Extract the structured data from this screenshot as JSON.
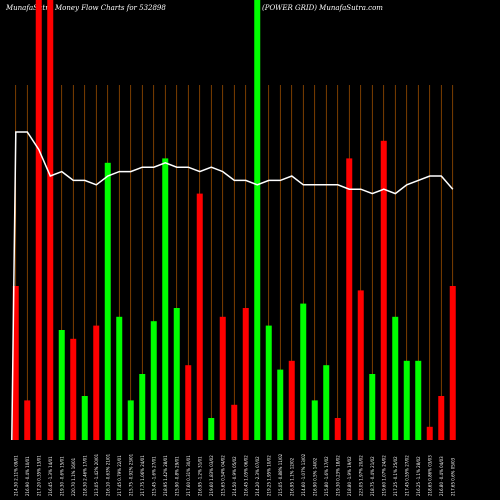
{
  "chart_data": {
    "type": "bar",
    "title": "MunafaSutra  Money Flow  Charts for 532898",
    "subtitle": "(POWER GRID) MunafaSutra.com",
    "ylim": [
      0,
      100
    ],
    "grid": false,
    "colors": {
      "up": "#00ff00",
      "down": "#ff0000",
      "line": "#ffffff",
      "gridline": "#cc6600",
      "background": "#000000"
    },
    "bars": [
      {
        "value": 35,
        "color": "down",
        "label": "214.30 2.11% 09/01"
      },
      {
        "value": 9,
        "color": "down",
        "label": "216.90 -0.4% 10/01"
      },
      {
        "value": 100,
        "color": "down",
        "label": "217.20 0.35% 13/01"
      },
      {
        "value": 100,
        "color": "down",
        "label": "216.45 -1.3% 14/01"
      },
      {
        "value": 25,
        "color": "up",
        "label": "219.30 -0.6% 15/01"
      },
      {
        "value": 23,
        "color": "down",
        "label": "220.70 1.1% 16/01"
      },
      {
        "value": 10,
        "color": "up",
        "label": "218.30 2.46% 17/01"
      },
      {
        "value": 26,
        "color": "down",
        "label": "213.05 -1.42% 20/01"
      },
      {
        "value": 63,
        "color": "up",
        "label": "216.10 -0.63% 21/01"
      },
      {
        "value": 28,
        "color": "up",
        "label": "217.45 0.79% 22/01"
      },
      {
        "value": 9,
        "color": "up",
        "label": "215.75 -0.92% 23/01"
      },
      {
        "value": 15,
        "color": "up",
        "label": "217.75 1.06% 24/01"
      },
      {
        "value": 27,
        "color": "up",
        "label": "215.45 -1.6% 27/01"
      },
      {
        "value": 64,
        "color": "up",
        "label": "218.95 1.42% 28/01"
      },
      {
        "value": 30,
        "color": "up",
        "label": "215.90 -0.8% 29/01"
      },
      {
        "value": 17,
        "color": "down",
        "label": "217.60 0.31% 30/01"
      },
      {
        "value": 56,
        "color": "down",
        "label": "216.95 -1.2% 31/01"
      },
      {
        "value": 5,
        "color": "up",
        "label": "219.60 1.83% 03/02"
      },
      {
        "value": 28,
        "color": "down",
        "label": "215.65 0.54% 04/02"
      },
      {
        "value": 8,
        "color": "down",
        "label": "214.50 -0.9% 05/02"
      },
      {
        "value": 30,
        "color": "down",
        "label": "216.45 1.05% 06/02"
      },
      {
        "value": 100,
        "color": "up",
        "label": "214.20 -2.3% 07/02"
      },
      {
        "value": 26,
        "color": "up",
        "label": "219.25 1.95% 10/02"
      },
      {
        "value": 16,
        "color": "up",
        "label": "215.05 -0.88% 11/02"
      },
      {
        "value": 18,
        "color": "down",
        "label": "216.95 1.1% 12/02"
      },
      {
        "value": 31,
        "color": "up",
        "label": "214.60 -1.07% 13/02"
      },
      {
        "value": 9,
        "color": "up",
        "label": "216.90 0.5% 14/02"
      },
      {
        "value": 17,
        "color": "up",
        "label": "215.80 -1.6% 17/02"
      },
      {
        "value": 5,
        "color": "down",
        "label": "219.30 0.23% 18/02"
      },
      {
        "value": 64,
        "color": "down",
        "label": "218.80 -1.9% 19/02"
      },
      {
        "value": 34,
        "color": "down",
        "label": "223.05 1.97% 20/02"
      },
      {
        "value": 15,
        "color": "up",
        "label": "218.75 -0.4% 21/02"
      },
      {
        "value": 68,
        "color": "down",
        "label": "219.60 1.07% 24/02"
      },
      {
        "value": 28,
        "color": "up",
        "label": "217.25 -0.1% 25/02"
      },
      {
        "value": 18,
        "color": "up",
        "label": "217.45 0.55% 27/02"
      },
      {
        "value": 18,
        "color": "up",
        "label": "216.25 -1.1% 28/02"
      },
      {
        "value": 3,
        "color": "down",
        "label": "218.65 0.86% 03/03"
      },
      {
        "value": 10,
        "color": "down",
        "label": "216.80 -0.4% 04/03"
      },
      {
        "value": 35,
        "color": "down",
        "label": "217.65 0.6% 05/03"
      }
    ],
    "line": [
      70,
      70,
      66,
      60,
      61,
      59,
      59,
      58,
      60,
      61,
      61,
      62,
      62,
      63,
      62,
      62,
      61,
      62,
      61,
      59,
      59,
      58,
      59,
      59,
      60,
      58,
      58,
      58,
      58,
      57,
      57,
      56,
      57,
      56,
      58,
      59,
      60,
      60,
      57
    ],
    "line_start": 0
  }
}
